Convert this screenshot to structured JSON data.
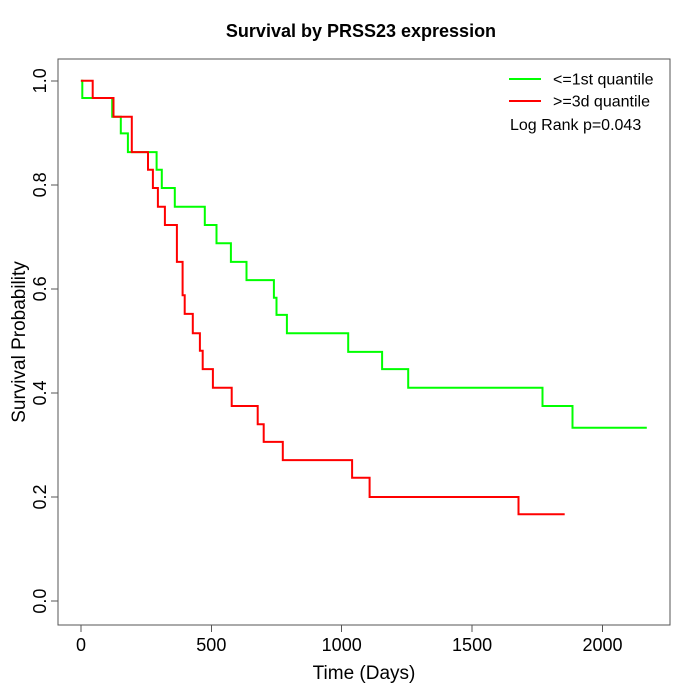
{
  "figure": {
    "background": "#ffffff"
  },
  "chart_data": {
    "type": "line",
    "variant": "kaplan-meier-step",
    "title": "Survival by PRSS23 expression",
    "xlabel": "Time (Days)",
    "ylabel": "Survival Probability",
    "xlim": [
      -88,
      2259
    ],
    "ylim": [
      -0.046,
      1.042
    ],
    "x_tick_values": [
      0,
      500,
      1000,
      1500,
      2000
    ],
    "x_tick_labels": [
      "0",
      "500",
      "1000",
      "1500",
      "2000"
    ],
    "y_tick_values": [
      0.0,
      0.2,
      0.4,
      0.6,
      0.8,
      1.0
    ],
    "y_tick_labels": [
      "0.0",
      "0.2",
      "0.4",
      "0.6",
      "0.8",
      "1.0"
    ],
    "grid": false,
    "legend": {
      "position": "topright",
      "entries": [
        {
          "label": "<=1st quantile",
          "color": "#00ff00"
        },
        {
          "label": ">=3d quantile",
          "color": "#ff0000"
        }
      ],
      "annotation": "Log Rank p=0.043"
    },
    "series": [
      {
        "name": "<=1st quantile",
        "color": "#00ff00",
        "points": [
          [
            0,
            1.0
          ],
          [
            5,
            0.967
          ],
          [
            120,
            0.931
          ],
          [
            153,
            0.899
          ],
          [
            180,
            0.863
          ],
          [
            290,
            0.829
          ],
          [
            310,
            0.794
          ],
          [
            360,
            0.758
          ],
          [
            475,
            0.723
          ],
          [
            520,
            0.688
          ],
          [
            575,
            0.652
          ],
          [
            635,
            0.617
          ],
          [
            740,
            0.583
          ],
          [
            750,
            0.55
          ],
          [
            790,
            0.515
          ],
          [
            1025,
            0.479
          ],
          [
            1155,
            0.446
          ],
          [
            1255,
            0.41
          ],
          [
            1770,
            0.375
          ],
          [
            1885,
            0.333
          ],
          [
            2170,
            0.333
          ]
        ]
      },
      {
        "name": ">=3d quantile",
        "color": "#ff0000",
        "points": [
          [
            0,
            1.0
          ],
          [
            45,
            0.967
          ],
          [
            125,
            0.931
          ],
          [
            195,
            0.863
          ],
          [
            257,
            0.829
          ],
          [
            276,
            0.794
          ],
          [
            295,
            0.758
          ],
          [
            322,
            0.723
          ],
          [
            368,
            0.652
          ],
          [
            390,
            0.588
          ],
          [
            398,
            0.552
          ],
          [
            429,
            0.515
          ],
          [
            456,
            0.481
          ],
          [
            467,
            0.446
          ],
          [
            506,
            0.41
          ],
          [
            578,
            0.375
          ],
          [
            678,
            0.34
          ],
          [
            701,
            0.306
          ],
          [
            774,
            0.271
          ],
          [
            1040,
            0.237
          ],
          [
            1107,
            0.2
          ],
          [
            1678,
            0.167
          ],
          [
            1855,
            0.167
          ]
        ]
      }
    ]
  }
}
